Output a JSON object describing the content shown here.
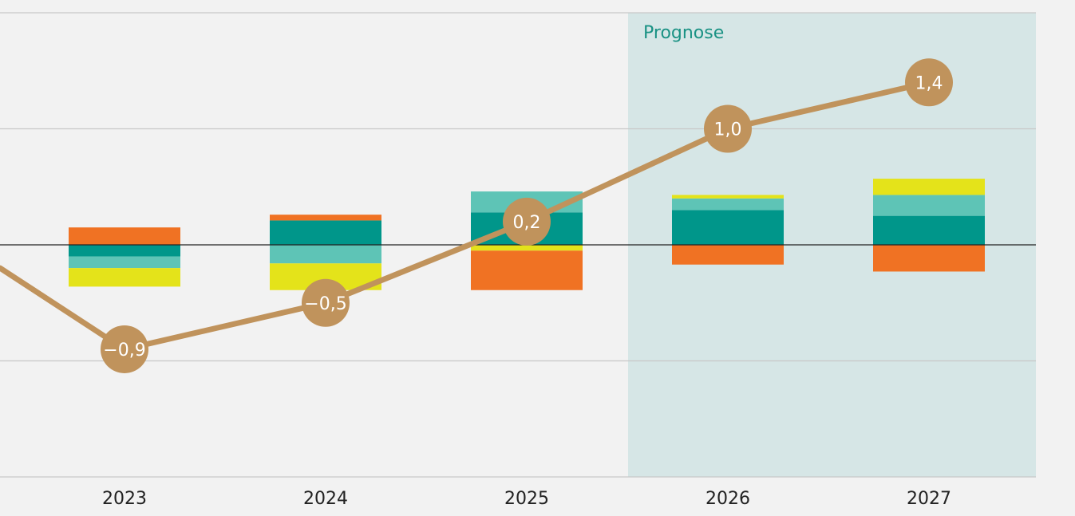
{
  "chart_data": {
    "type": "bar",
    "subtype": "stacked-bar-with-line",
    "categories": [
      "2023",
      "2024",
      "2025",
      "2026",
      "2027"
    ],
    "forecast": {
      "label": "Prognose",
      "from_category": "2026",
      "background": "#d6e6e6",
      "label_color": "#1a9284"
    },
    "ylim": [
      -2,
      2
    ],
    "yticks": [
      -2,
      -1,
      0,
      1,
      2
    ],
    "grid": true,
    "legend": "none",
    "series": [
      {
        "color": "#00968a",
        "values": [
          -0.1,
          0.21,
          0.28,
          0.3,
          0.25
        ]
      },
      {
        "color": "#5ec4b6",
        "values": [
          -0.1,
          -0.16,
          0.18,
          0.1,
          0.18
        ]
      },
      {
        "color": "#e4e31a",
        "values": [
          -0.16,
          -0.23,
          -0.05,
          0.03,
          0.14
        ]
      },
      {
        "color": "#f07223",
        "values": [
          0.15,
          0.05,
          -0.34,
          -0.17,
          -0.23
        ]
      }
    ],
    "line": {
      "color": "#c0935c",
      "values": [
        -0.9,
        -0.5,
        0.2,
        1.0,
        1.4
      ],
      "labels": [
        "−0,9",
        "−0,5",
        "0,2",
        "1,0",
        "1,4"
      ],
      "start_value": -0.2
    }
  }
}
